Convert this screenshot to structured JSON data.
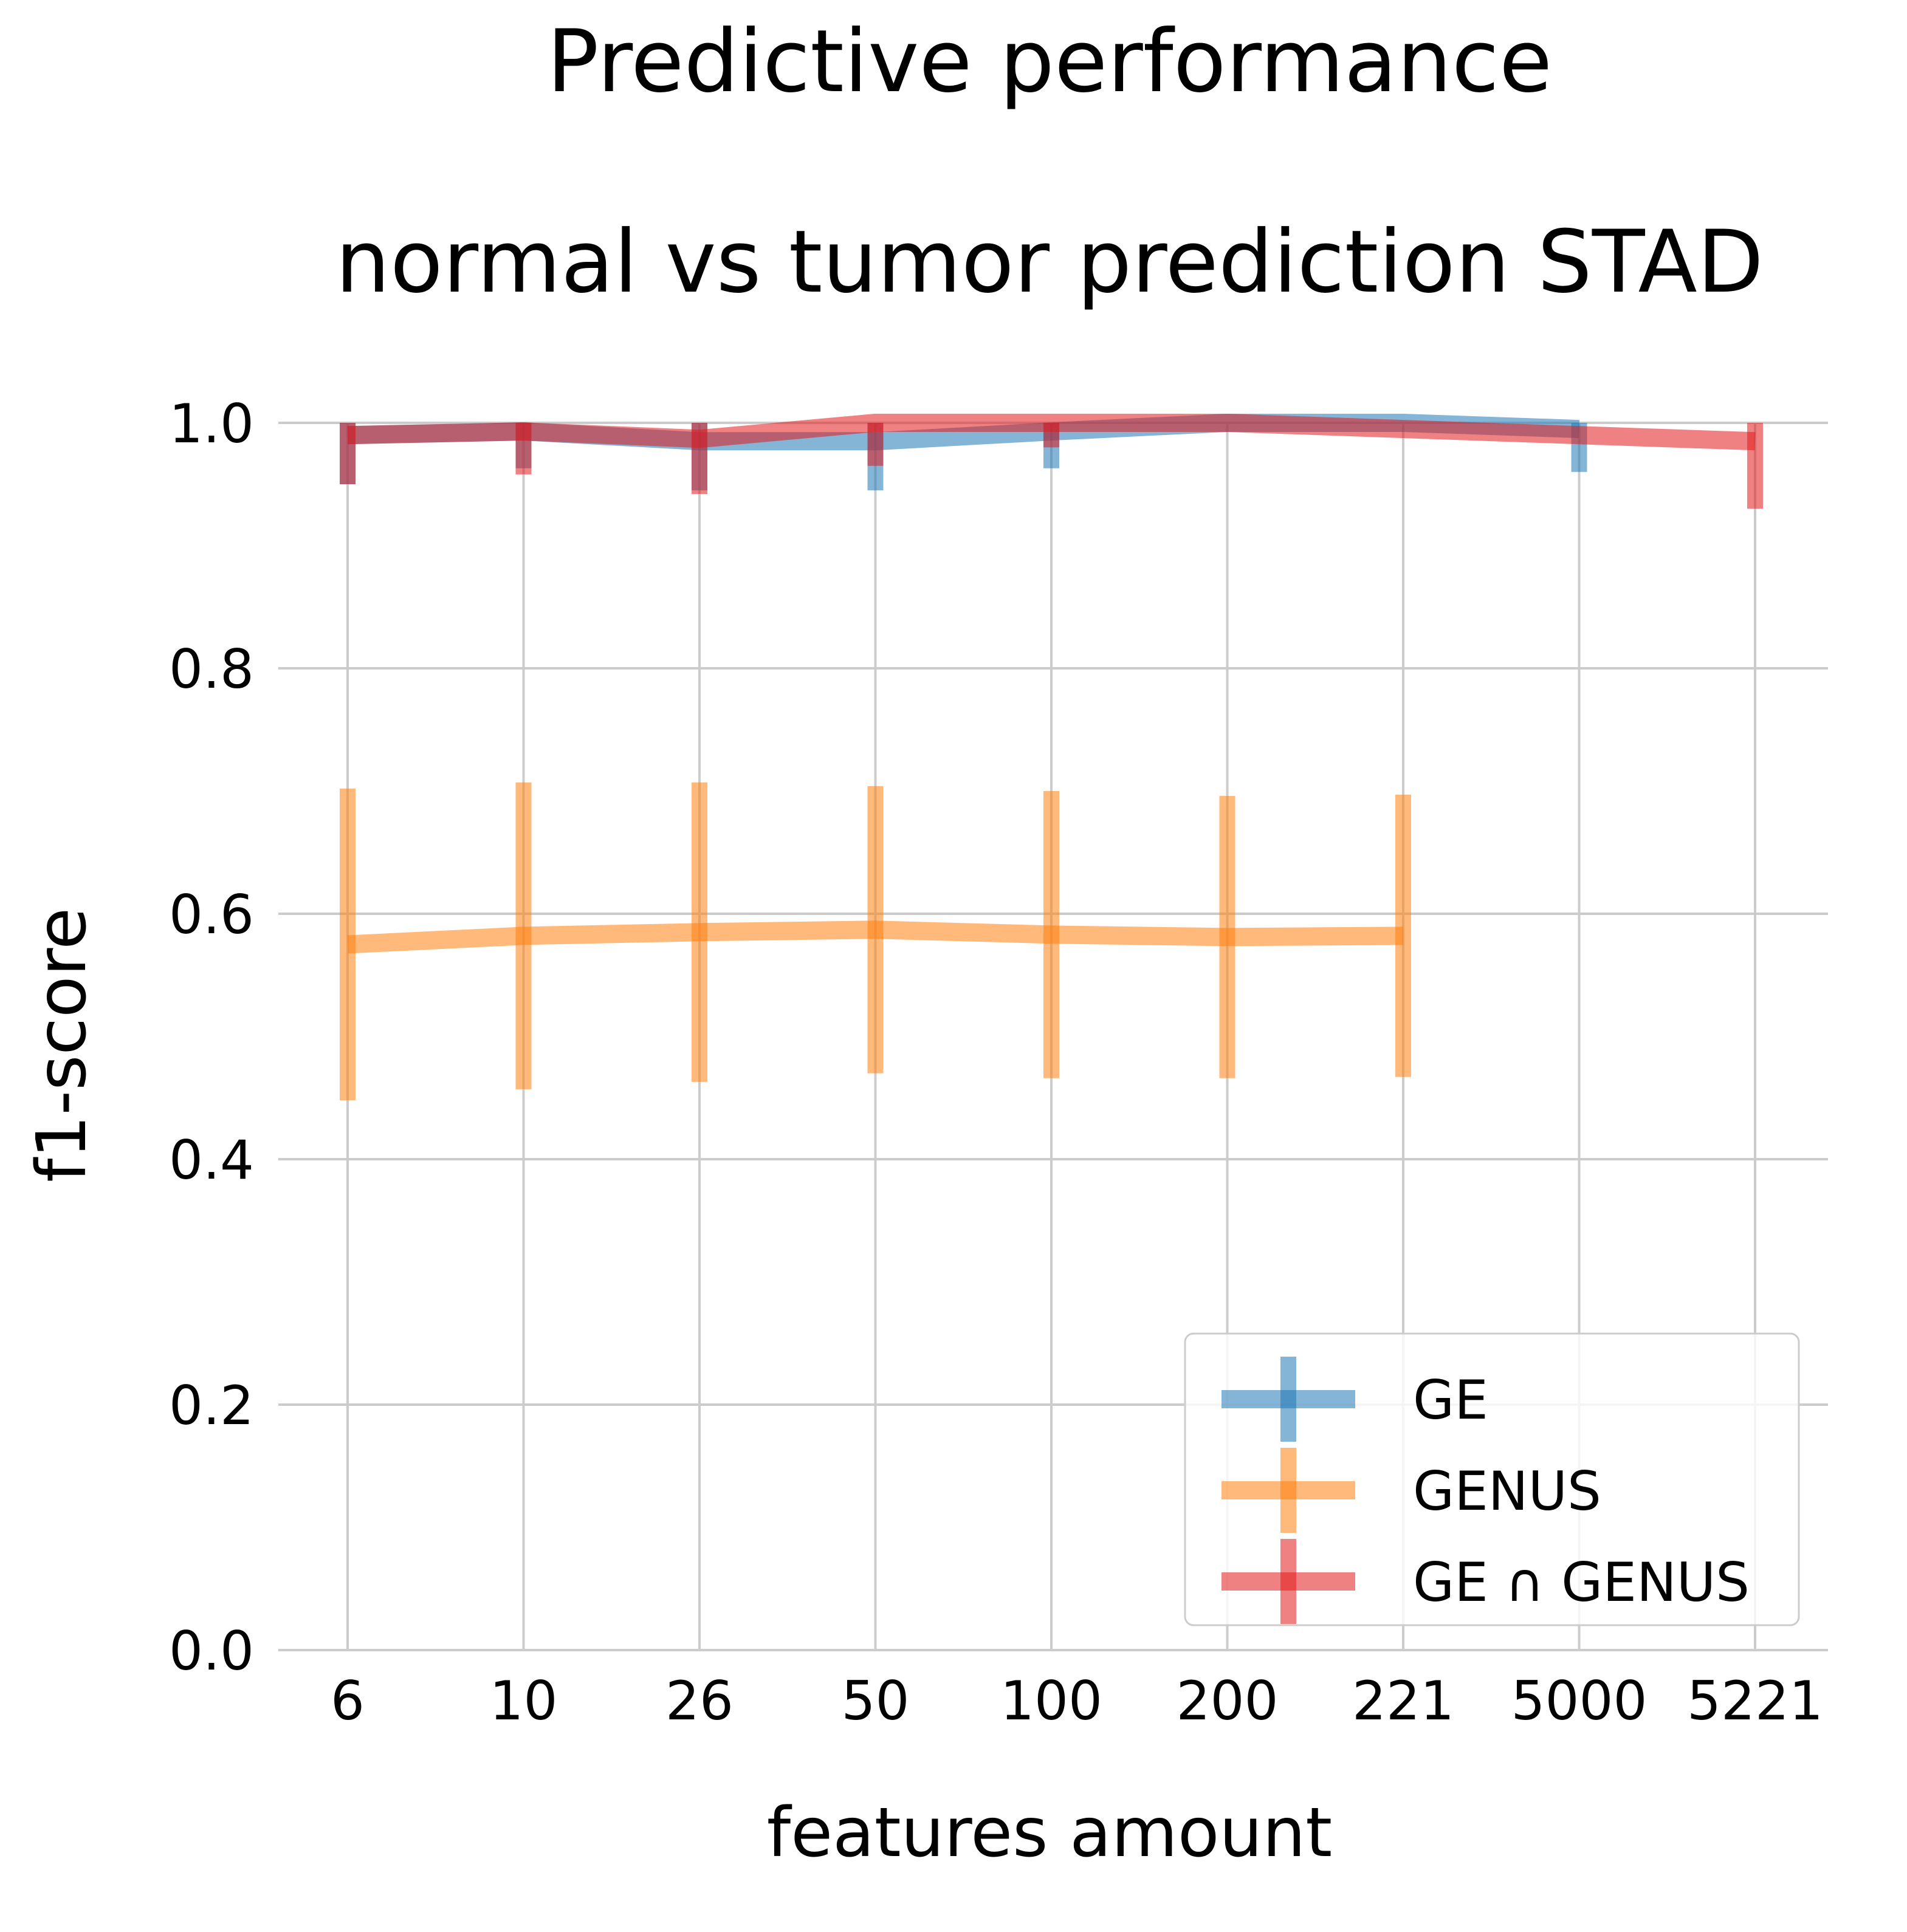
{
  "chart_data": {
    "type": "line",
    "title": "Predictive performance",
    "subtitle": "normal vs tumor prediction STAD",
    "xlabel": "features amount",
    "ylabel": "f1-score",
    "categories": [
      "6",
      "10",
      "26",
      "50",
      "100",
      "200",
      "221",
      "5000",
      "5221"
    ],
    "ylim": [
      0.0,
      1.0
    ],
    "yticks": [
      "0.0",
      "0.2",
      "0.4",
      "0.6",
      "0.8",
      "1.0"
    ],
    "grid": true,
    "legend_position": "bottom-right",
    "error_bars": true,
    "series": [
      {
        "name": "GE",
        "color": "#1f77b4",
        "values": [
          0.99,
          0.993,
          0.985,
          0.985,
          0.993,
          1.0,
          1.0,
          0.995,
          null
        ],
        "errors": [
          0.04,
          0.03,
          0.04,
          0.04,
          0.03,
          0.0,
          0.0,
          0.035,
          null
        ]
      },
      {
        "name": "GENUS",
        "color": "#ff7f0e",
        "values": [
          0.575,
          0.582,
          0.585,
          0.587,
          0.583,
          0.581,
          0.582,
          null,
          null
        ],
        "errors": [
          0.127,
          0.125,
          0.122,
          0.117,
          0.117,
          0.115,
          0.115,
          null,
          null
        ]
      },
      {
        "name": "GE ∩ GENUS",
        "color": "#e41a1c",
        "values": [
          0.99,
          0.993,
          0.987,
          1.0,
          1.0,
          1.0,
          0.995,
          0.99,
          0.985
        ],
        "errors": [
          0.04,
          0.035,
          0.045,
          0.035,
          0.02,
          0.0,
          0.0,
          0.0,
          0.055
        ]
      }
    ]
  }
}
